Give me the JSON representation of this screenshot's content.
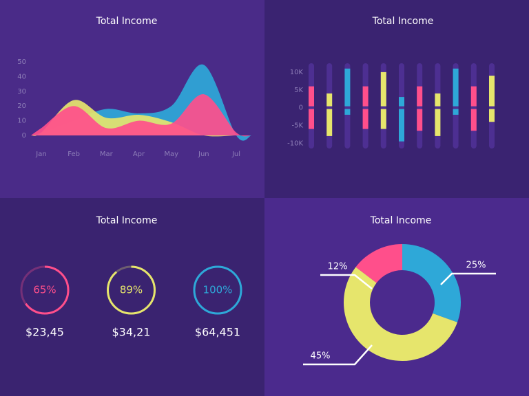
{
  "chart_data": [
    {
      "type": "area",
      "title": "Total Income",
      "categories": [
        "Jan",
        "Feb",
        "Mar",
        "Apr",
        "May",
        "Jun",
        "Jul"
      ],
      "series": [
        {
          "color": "#2ea8d8",
          "values": [
            2,
            10,
            18,
            15,
            20,
            48,
            0
          ]
        },
        {
          "color": "#e6e56c",
          "values": [
            2,
            24,
            12,
            14,
            9,
            0,
            0
          ]
        },
        {
          "color": "#ff4f8b",
          "values": [
            5,
            20,
            5,
            10,
            8,
            28,
            2
          ]
        }
      ],
      "ylim": [
        0,
        50
      ],
      "yticks": [
        0,
        10,
        20,
        30,
        40,
        50
      ]
    },
    {
      "type": "bar",
      "title": "Total Income",
      "high": [
        6000,
        4000,
        11000,
        6000,
        10000,
        3000,
        6000,
        4000,
        11000,
        6000,
        9000
      ],
      "low": [
        -6000,
        -8000,
        -2000,
        -6000,
        -6000,
        -9500,
        -6500,
        -8000,
        -2000,
        -6500,
        -4000
      ],
      "colors": [
        "#ff4f8b",
        "#e6e56c",
        "#2ea8d8",
        "#ff4f8b",
        "#e6e56c",
        "#2ea8d8",
        "#ff4f8b",
        "#e6e56c",
        "#2ea8d8",
        "#ff4f8b",
        "#e6e56c"
      ],
      "ylim": [
        -11500,
        12500
      ],
      "yticks": [
        {
          "value": 10000,
          "label": "10K"
        },
        {
          "value": 5000,
          "label": "5K"
        },
        0,
        {
          "value": -5000,
          "label": "-5K"
        },
        {
          "value": -10000,
          "label": "-10K"
        }
      ]
    },
    {
      "type": "gauge",
      "title": "Total Income",
      "values": [
        65,
        89,
        100
      ],
      "value_labels": [
        "65%",
        "89%",
        "100%"
      ],
      "labels": [
        "$23,45",
        "$34,21",
        "$64,451"
      ],
      "colors": [
        "#ff4f8b",
        "#e6e56c",
        "#2ea8d8"
      ]
    },
    {
      "type": "pie",
      "title": "Total Income",
      "values": [
        12,
        25,
        45
      ],
      "value_labels": [
        "12%",
        "25%",
        "45%"
      ],
      "colors": [
        "#ff4f8b",
        "#2ea8d8",
        "#e6e56c"
      ]
    }
  ]
}
